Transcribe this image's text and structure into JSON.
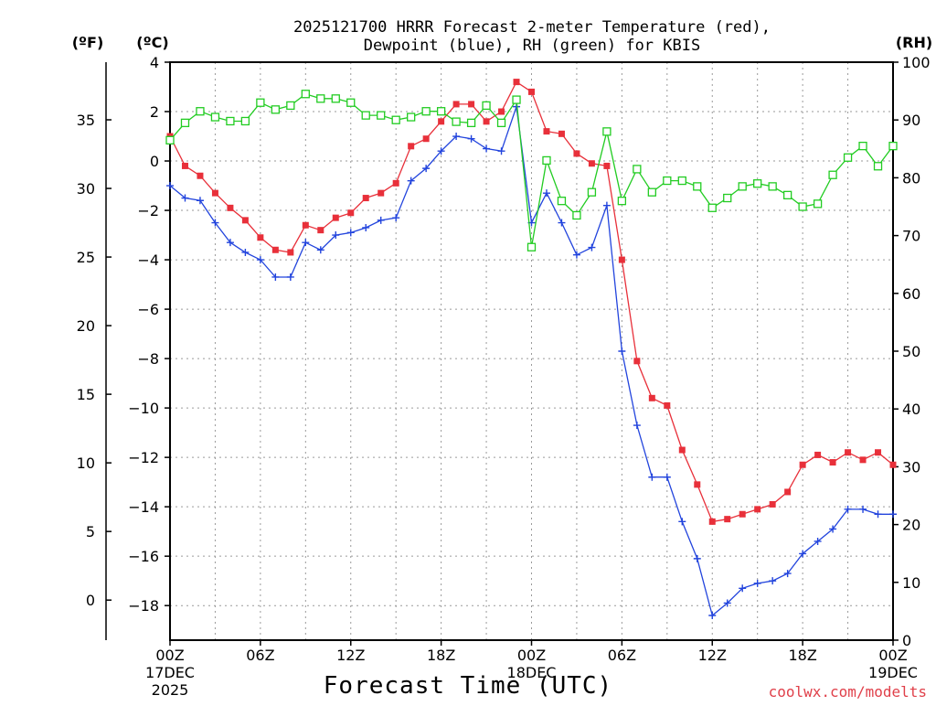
{
  "chart_data": {
    "type": "line",
    "title_lines": [
      "2025121700 HRRR Forecast 2-meter Temperature (red),",
      "Dewpoint (blue), RH (green) for KBIS"
    ],
    "xlabel": "Forecast Time (UTC)",
    "credit": "coolwx.com/modelts",
    "units": {
      "fahrenheit": "(ºF)",
      "celsius": "(ºC)",
      "rh": "(RH)"
    },
    "x_hours": [
      0,
      1,
      2,
      3,
      4,
      5,
      6,
      7,
      8,
      9,
      10,
      11,
      12,
      13,
      14,
      15,
      16,
      17,
      18,
      19,
      20,
      21,
      22,
      23,
      24,
      25,
      26,
      27,
      28,
      29,
      30,
      31,
      32,
      33,
      34,
      35,
      36,
      37,
      38,
      39,
      40,
      41,
      42,
      43,
      44,
      45,
      46,
      47,
      48
    ],
    "xlim": [
      0,
      48
    ],
    "x_ticks": [
      {
        "hour": 0,
        "lines": [
          "00Z",
          "17DEC",
          "2025"
        ]
      },
      {
        "hour": 6,
        "lines": [
          "06Z"
        ]
      },
      {
        "hour": 12,
        "lines": [
          "12Z"
        ]
      },
      {
        "hour": 18,
        "lines": [
          "18Z"
        ]
      },
      {
        "hour": 24,
        "lines": [
          "00Z",
          "18DEC"
        ]
      },
      {
        "hour": 30,
        "lines": [
          "06Z"
        ]
      },
      {
        "hour": 36,
        "lines": [
          "12Z"
        ]
      },
      {
        "hour": 42,
        "lines": [
          "18Z"
        ]
      },
      {
        "hour": 48,
        "lines": [
          "00Z",
          "19DEC"
        ]
      }
    ],
    "celsius_axis": {
      "ylim": [
        -19.4,
        4.0
      ],
      "ticks": [
        4,
        2,
        0,
        -2,
        -4,
        -6,
        -8,
        -10,
        -12,
        -14,
        -16,
        -18
      ],
      "tick_labels": [
        "4",
        "2",
        "0",
        "−2",
        "−4",
        "−6",
        "−8",
        "−10",
        "−12",
        "−14",
        "−16",
        "−18"
      ]
    },
    "fahrenheit_axis": {
      "ticks": [
        35,
        30,
        25,
        20,
        15,
        10,
        5,
        0
      ]
    },
    "rh_axis": {
      "ylim": [
        0,
        100
      ],
      "ticks": [
        100,
        90,
        80,
        70,
        60,
        50,
        40,
        30,
        20,
        10,
        0
      ]
    },
    "series": [
      {
        "name": "2-meter Temperature",
        "axis": "celsius",
        "color": "#e8303a",
        "marker": "filled-square",
        "values": [
          1.0,
          -0.2,
          -0.6,
          -1.3,
          -1.9,
          -2.4,
          -3.1,
          -3.6,
          -3.7,
          -2.6,
          -2.8,
          -2.3,
          -2.1,
          -1.5,
          -1.3,
          -0.9,
          0.6,
          0.9,
          1.6,
          2.3,
          2.3,
          1.6,
          2.0,
          3.2,
          2.8,
          1.2,
          1.1,
          0.3,
          -0.1,
          -0.2,
          -4.0,
          -8.1,
          -9.6,
          -9.9,
          -11.7,
          -13.1,
          -14.6,
          -14.5,
          -14.3,
          -14.1,
          -13.9,
          -13.4,
          -12.3,
          -11.9,
          -12.2,
          -11.8,
          -12.1,
          -11.8,
          -12.3
        ]
      },
      {
        "name": "Dewpoint",
        "axis": "celsius",
        "color": "#2244dd",
        "marker": "plus",
        "values": [
          -1.0,
          -1.5,
          -1.6,
          -2.5,
          -3.3,
          -3.7,
          -4.0,
          -4.7,
          -4.7,
          -3.3,
          -3.6,
          -3.0,
          -2.9,
          -2.7,
          -2.4,
          -2.3,
          -0.8,
          -0.3,
          0.4,
          1.0,
          0.9,
          0.5,
          0.4,
          2.2,
          -2.5,
          -1.3,
          -2.5,
          -3.8,
          -3.5,
          -1.8,
          -7.7,
          -10.7,
          -12.8,
          -12.8,
          -14.6,
          -16.1,
          -18.4,
          -17.9,
          -17.3,
          -17.1,
          -17.0,
          -16.7,
          -15.9,
          -15.4,
          -14.9,
          -14.1,
          -14.1,
          -14.3,
          -14.3
        ]
      },
      {
        "name": "Relative Humidity",
        "axis": "rh",
        "color": "#22cc22",
        "marker": "open-square",
        "values": [
          86.5,
          89.5,
          91.5,
          90.5,
          89.8,
          89.8,
          93.0,
          91.8,
          92.5,
          94.5,
          93.7,
          93.7,
          93.0,
          90.8,
          90.8,
          90.0,
          90.5,
          91.5,
          91.5,
          89.7,
          89.5,
          92.5,
          89.5,
          93.5,
          68.0,
          83.0,
          76.0,
          73.5,
          77.5,
          88.0,
          76.0,
          81.5,
          77.5,
          79.5,
          79.5,
          78.5,
          74.8,
          76.5,
          78.5,
          79.0,
          78.5,
          77.0,
          75.0,
          75.5,
          80.5,
          83.5,
          85.5,
          82.0,
          85.5
        ]
      }
    ]
  }
}
